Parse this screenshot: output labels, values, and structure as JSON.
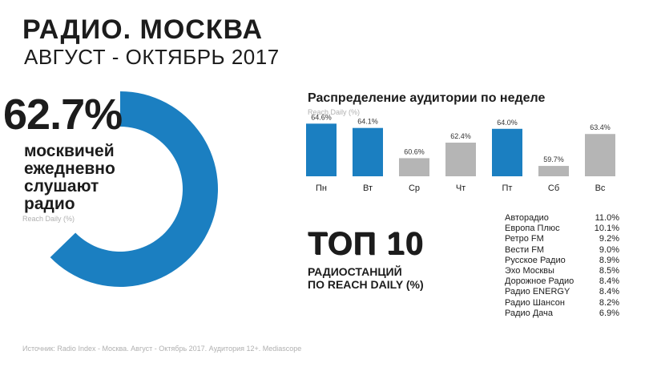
{
  "header": {
    "title": "РАДИО. МОСКВА",
    "subtitle": "АВГУСТ - ОКТЯБРЬ 2017"
  },
  "stat": {
    "value": "62.7%",
    "lines": [
      "москвичей",
      "ежедневно",
      "слушают",
      "радио"
    ],
    "note": "Reach Daily  (%)"
  },
  "colors": {
    "accent": "#1b7fc1",
    "grey": "#b5b5b5"
  },
  "chart_data": [
    {
      "type": "pie",
      "values": [
        62.7,
        37.3
      ],
      "note": "donut ring, blue segment filled"
    },
    {
      "type": "bar",
      "title": "Распределение аудитории по неделе",
      "ylabel": "Reach Daily  (%)",
      "categories": [
        "Пн",
        "Вт",
        "Ср",
        "Чт",
        "Пт",
        "Сб",
        "Вс"
      ],
      "values": [
        64.6,
        64.1,
        60.6,
        62.4,
        64.0,
        59.7,
        63.4
      ],
      "labels": [
        "64.6%",
        "64.1%",
        "60.6%",
        "62.4%",
        "64.0%",
        "59.7%",
        "63.4%"
      ],
      "highlight": [
        true,
        true,
        false,
        false,
        true,
        false,
        false
      ],
      "ylim": [
        58.5,
        65
      ]
    }
  ],
  "top10": {
    "title": "ТОП 10",
    "subtitle_line1": "РАДИОСТАНЦИЙ",
    "subtitle_line2": "ПО REACH DAILY (%)",
    "stations": [
      {
        "name": "Авторадио",
        "value": "11.0%"
      },
      {
        "name": "Европа Плюс",
        "value": "10.1%"
      },
      {
        "name": "Ретро FM",
        "value": "9.2%"
      },
      {
        "name": "Вести FM",
        "value": "9.0%"
      },
      {
        "name": "Русское Радио",
        "value": "8.9%"
      },
      {
        "name": "Эхо Москвы",
        "value": "8.5%"
      },
      {
        "name": "Дорожное Радио",
        "value": "8.4%"
      },
      {
        "name": "Радио ENERGY",
        "value": "8.4%"
      },
      {
        "name": "Радио Шансон",
        "value": "8.2%"
      },
      {
        "name": "Радио Дача",
        "value": "6.9%"
      }
    ]
  },
  "footer": {
    "source": "Источник:  Radio Index - Москва. Август - Октябрь 2017. Аудитория 12+. Mediascope"
  }
}
